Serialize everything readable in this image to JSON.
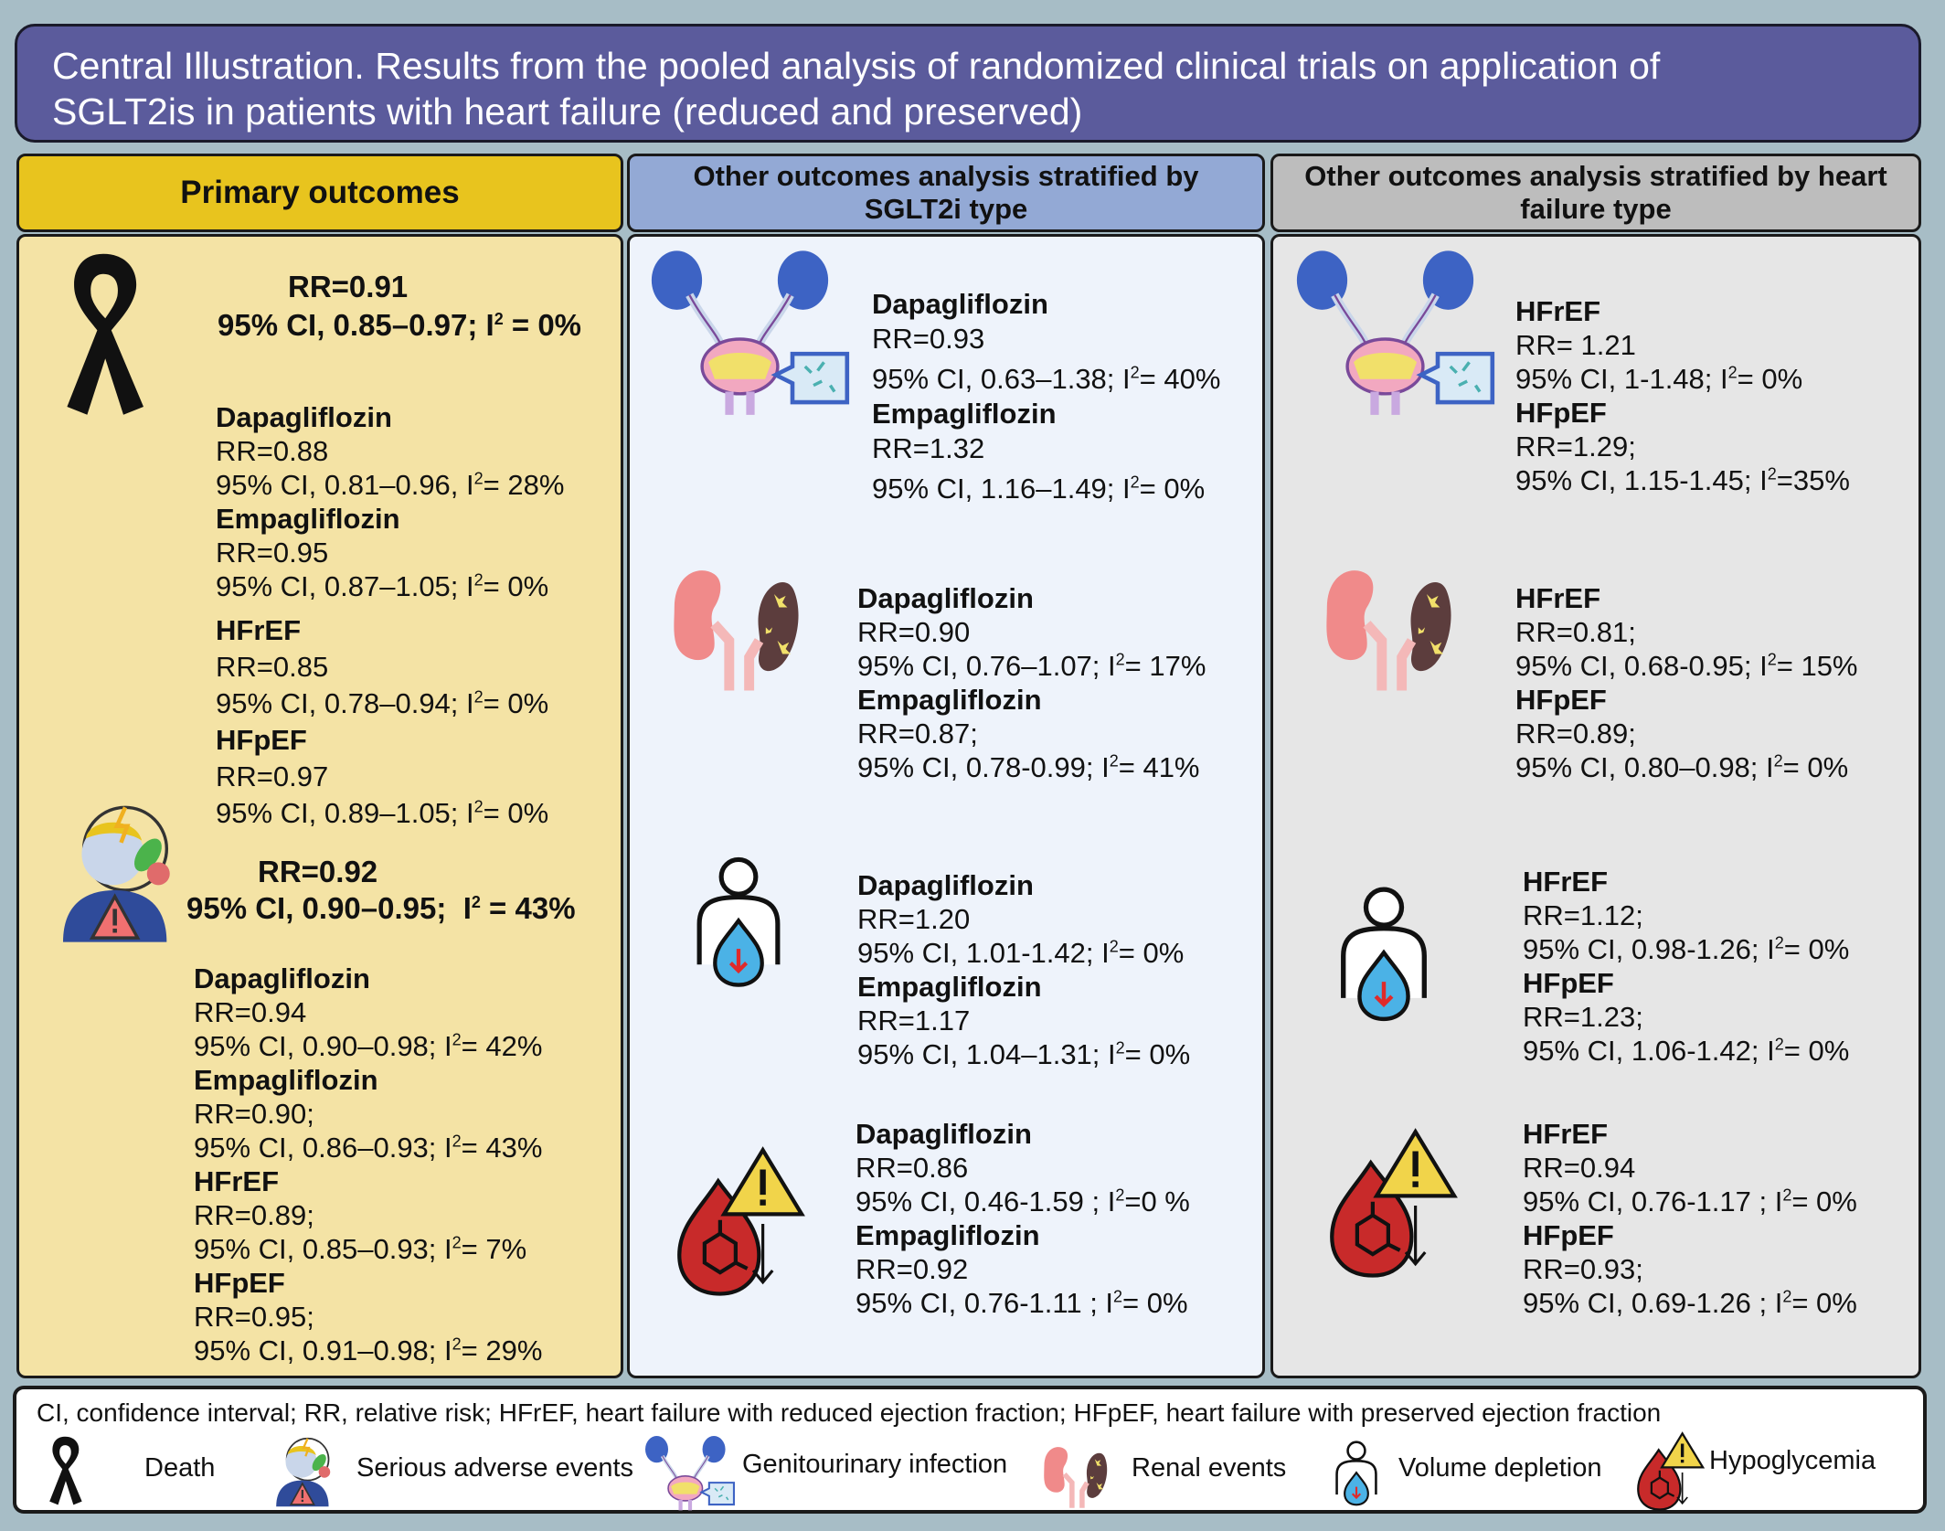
{
  "title": {
    "line1": "Central Illustration. Results from the pooled analysis of randomized clinical trials on application of",
    "line2": "SGLT2is in patients with heart failure (reduced and preserved)"
  },
  "headers": {
    "primary": "Primary outcomes",
    "sglt_line1": "Other outcomes analysis stratified by",
    "sglt_line2": "SGLT2i type",
    "hf_line1": "Other outcomes analysis stratified by  heart",
    "hf_line2": "failure type"
  },
  "primary": {
    "death": {
      "rr": "RR=0.91",
      "ci": "95% CI, 0.85–0.97",
      "i2": "; I",
      "i2_val": " = 0%",
      "dapa_name": "Dapagliflozin",
      "dapa_rr": "RR=0.88",
      "dapa_ci": "95% CI, 0.81–0.96, I",
      "dapa_i2": "= 28%",
      "empa_name": "Empagliflozin",
      "empa_rr": "RR=0.95",
      "empa_ci": "95% CI, 0.87–1.05; I",
      "empa_i2": "= 0%",
      "hfref_name": "HFrEF",
      "hfref_rr": "RR=0.85",
      "hfref_ci": "95% CI, 0.78–0.94; I",
      "hfref_i2": "= 0%",
      "hfpef_name": "HFpEF",
      "hfpef_rr": "RR=0.97",
      "hfpef_ci": "95% CI, 0.89–1.05; I",
      "hfpef_i2": "= 0%"
    },
    "sae": {
      "rr": "RR=0.92",
      "ci": "95% CI, 0.90–0.95;",
      "i2": "I",
      "i2_val": " = 43%",
      "dapa_name": "Dapagliflozin",
      "dapa_rr": "RR=0.94",
      "dapa_ci": "95% CI, 0.90–0.98; I",
      "dapa_i2": "= 42%",
      "empa_name": "Empagliflozin",
      "empa_rr": "RR=0.90;",
      "empa_ci": "95% CI, 0.86–0.93; I",
      "empa_i2": "= 43%",
      "hfref_name": "HFrEF",
      "hfref_rr": "RR=0.89;",
      "hfref_ci": "95% CI, 0.85–0.93; I",
      "hfref_i2": "= 7%",
      "hfpef_name": "HFpEF",
      "hfpef_rr": "RR=0.95;",
      "hfpef_ci": "95% CI, 0.91–0.98; I",
      "hfpef_i2": "= 29%"
    }
  },
  "sglt": {
    "geni": {
      "a_name": "Dapagliflozin",
      "a_rr": "RR=0.93",
      "a_ci": "95% CI, 0.63–1.38; I",
      "a_i2": "= 40%",
      "b_name": "Empagliflozin",
      "b_rr": "RR=1.32",
      "b_ci": "95% CI, 1.16–1.49; I",
      "b_i2": "= 0%"
    },
    "renal": {
      "a_name": "Dapagliflozin",
      "a_rr": "RR=0.90",
      "a_ci": "95% CI, 0.76–1.07; I",
      "a_i2": "= 17%",
      "b_name": "Empagliflozin",
      "b_rr": "RR=0.87;",
      "b_ci": "95% CI, 0.78-0.99; I",
      "b_i2": "= 41%"
    },
    "volume": {
      "a_name": "Dapagliflozin",
      "a_rr": "RR=1.20",
      "a_ci": "95% CI, 1.01-1.42; I",
      "a_i2": "= 0%",
      "b_name": "Empagliflozin",
      "b_rr": "RR=1.17",
      "b_ci": "95% CI, 1.04–1.31; I",
      "b_i2": "= 0%"
    },
    "hypo": {
      "a_name": "Dapagliflozin",
      "a_rr": "RR=0.86",
      "a_ci": "95% CI, 0.46-1.59 ; I",
      "a_i2": "=0 %",
      "b_name": "Empagliflozin",
      "b_rr": "RR=0.92",
      "b_ci": "95% CI, 0.76-1.11 ; I",
      "b_i2": "= 0%"
    }
  },
  "hf": {
    "geni": {
      "a_name": "HFrEF",
      "a_rr": "RR= 1.21",
      "a_ci": "95% CI, 1-1.48; I",
      "a_i2": "= 0%",
      "b_name": "HFpEF",
      "b_rr": "RR=1.29;",
      "b_ci": "95% CI, 1.15-1.45; I",
      "b_i2": "=35%"
    },
    "renal": {
      "a_name": "HFrEF",
      "a_rr": "RR=0.81;",
      "a_ci": "95% CI, 0.68-0.95; I",
      "a_i2": "= 15%",
      "b_name": "HFpEF",
      "b_rr": "RR=0.89;",
      "b_ci": "95% CI, 0.80–0.98; I",
      "b_i2": "= 0%"
    },
    "volume": {
      "a_name": "HFrEF",
      "a_rr": "RR=1.12;",
      "a_ci": "95% CI, 0.98-1.26; I",
      "a_i2": "= 0%",
      "b_name": "HFpEF",
      "b_rr": "RR=1.23;",
      "b_ci": "95% CI, 1.06-1.42; I",
      "b_i2": "= 0%"
    },
    "hypo": {
      "a_name": "HFrEF",
      "a_rr": "RR=0.94",
      "a_ci": "95% CI, 0.76-1.17 ; I",
      "a_i2": "= 0%",
      "b_name": "HFpEF",
      "b_rr": "RR=0.93;",
      "b_ci": "95% CI, 0.69-1.26 ; I",
      "b_i2": "= 0%"
    }
  },
  "sup2": "2",
  "legend": {
    "abbrev": "CI, confidence interval; RR, relative risk; HFrEF, heart failure with reduced ejection fraction; HFpEF, heart failure with preserved ejection fraction",
    "death": "Death",
    "sae": "Serious adverse events",
    "geni": "Genitourinary  infection",
    "renal": "Renal events",
    "volume": "Volume depletion",
    "hypo": "Hypoglycemia"
  },
  "icons": [
    "black-ribbon-icon",
    "adverse-event-person-icon",
    "bladder-kidney-infection-icon",
    "kidney-pair-icon",
    "volume-depletion-person-icon",
    "blood-drop-warning-icon"
  ],
  "colors": {
    "title_bg": "#5b5b9c",
    "primary_header": "#e8c41e",
    "primary_panel": "#f4e3a5",
    "sglt_header": "#93a9d5",
    "sglt_panel": "#eef3fb",
    "hf_header": "#bdbdbd",
    "hf_panel": "#e6e6e6"
  }
}
